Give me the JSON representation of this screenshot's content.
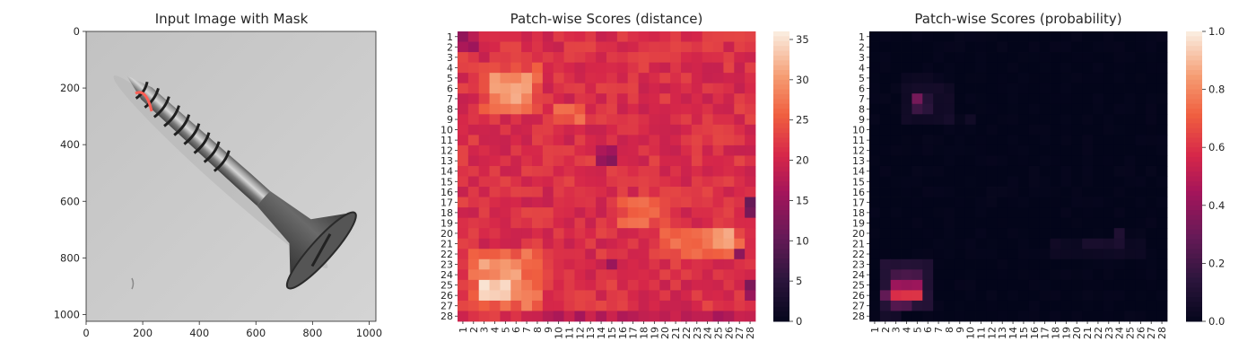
{
  "chart_data": [
    {
      "type": "image",
      "title": "Input Image with Mask",
      "xticks": [
        0,
        200,
        400,
        600,
        800,
        1000
      ],
      "yticks": [
        0,
        200,
        400,
        600,
        800,
        1000
      ],
      "xlim": [
        0,
        1024
      ],
      "ylim": [
        1024,
        0
      ],
      "content": "grayscale photo of a wood screw on a light gray background with a red mask arc near the screw tip",
      "background_gray": "#c9c9c9",
      "mask_color": "#ff5f55"
    },
    {
      "type": "heatmap",
      "title": "Patch-wise Scores (distance)",
      "rows": 28,
      "cols": 28,
      "row_labels": [
        "1",
        "2",
        "3",
        "4",
        "5",
        "6",
        "7",
        "8",
        "9",
        "10",
        "11",
        "12",
        "13",
        "14",
        "15",
        "16",
        "17",
        "18",
        "19",
        "20",
        "21",
        "22",
        "23",
        "24",
        "25",
        "26",
        "27",
        "28"
      ],
      "col_labels": [
        "1",
        "2",
        "3",
        "4",
        "5",
        "6",
        "7",
        "8",
        "9",
        "10",
        "11",
        "12",
        "13",
        "14",
        "15",
        "16",
        "17",
        "18",
        "19",
        "20",
        "21",
        "22",
        "23",
        "24",
        "25",
        "26",
        "27",
        "28"
      ],
      "colormap": "rocket",
      "vmin": 0,
      "vmax": 36,
      "colorbar_ticks": [
        "0",
        "5",
        "10",
        "15",
        "20",
        "25",
        "30",
        "35"
      ],
      "colorbar_tick_values": [
        0,
        5,
        10,
        15,
        20,
        25,
        30,
        35
      ],
      "base_value": 21.5,
      "regions": [
        {
          "r0": 0,
          "r1": 2,
          "c0": 0,
          "c1": 2,
          "value": 16
        },
        {
          "r0": 3,
          "r1": 8,
          "c0": 2,
          "c1": 8,
          "value": 25
        },
        {
          "r0": 4,
          "r1": 8,
          "c0": 3,
          "c1": 7,
          "value": 29
        },
        {
          "r0": 5,
          "r1": 7,
          "c0": 4,
          "c1": 6,
          "value": 31.5
        },
        {
          "r0": 7,
          "r1": 9,
          "c0": 9,
          "c1": 12,
          "value": 25.5
        },
        {
          "r0": 16,
          "r1": 19,
          "c0": 15,
          "c1": 20,
          "value": 25.5
        },
        {
          "r0": 19,
          "r1": 22,
          "c0": 19,
          "c1": 27,
          "value": 26
        },
        {
          "r0": 19,
          "r1": 21,
          "c0": 23,
          "c1": 26,
          "value": 29.5
        },
        {
          "r0": 21,
          "r1": 27,
          "c0": 1,
          "c1": 8,
          "value": 26.5
        },
        {
          "r0": 22,
          "r1": 26,
          "c0": 2,
          "c1": 6,
          "value": 30
        },
        {
          "r0": 24,
          "r1": 26,
          "c0": 2,
          "c1": 5,
          "value": 33.5
        },
        {
          "r0": 25,
          "r1": 26,
          "c0": 2,
          "c1": 4,
          "value": 35.5
        },
        {
          "r0": 27,
          "r1": 28,
          "c0": 8,
          "c1": 28,
          "value": 18.5
        },
        {
          "r0": 22,
          "r1": 23,
          "c0": 14,
          "c1": 15,
          "value": 15.5
        },
        {
          "r0": 11,
          "r1": 13,
          "c0": 13,
          "c1": 15,
          "value": 15.5
        },
        {
          "r0": 16,
          "r1": 18,
          "c0": 27,
          "c1": 28,
          "value": 12
        },
        {
          "r0": 21,
          "r1": 22,
          "c0": 26,
          "c1": 27,
          "value": 13
        },
        {
          "r0": 24,
          "r1": 26,
          "c0": 27,
          "c1": 28,
          "value": 14
        }
      ]
    },
    {
      "type": "heatmap",
      "title": "Patch-wise Scores (probability)",
      "rows": 28,
      "cols": 28,
      "row_labels": [
        "1",
        "2",
        "3",
        "4",
        "5",
        "6",
        "7",
        "8",
        "9",
        "10",
        "11",
        "12",
        "13",
        "14",
        "15",
        "16",
        "17",
        "18",
        "19",
        "20",
        "21",
        "22",
        "23",
        "24",
        "25",
        "26",
        "27",
        "28"
      ],
      "col_labels": [
        "1",
        "2",
        "3",
        "4",
        "5",
        "6",
        "7",
        "8",
        "9",
        "10",
        "11",
        "12",
        "13",
        "14",
        "15",
        "16",
        "17",
        "18",
        "19",
        "20",
        "21",
        "22",
        "23",
        "24",
        "25",
        "26",
        "27",
        "28"
      ],
      "colormap": "rocket",
      "vmin": 0,
      "vmax": 1,
      "colorbar_ticks": [
        "0.0",
        "0.2",
        "0.4",
        "0.6",
        "0.8",
        "1.0"
      ],
      "colorbar_tick_values": [
        0,
        0.2,
        0.4,
        0.6,
        0.8,
        1.0
      ],
      "base_value": 0.0,
      "regions": [
        {
          "r0": 4,
          "r1": 6,
          "c0": 3,
          "c1": 7,
          "value": 0.03
        },
        {
          "r0": 5,
          "r1": 9,
          "c0": 3,
          "c1": 8,
          "value": 0.06
        },
        {
          "r0": 6,
          "r1": 7,
          "c0": 4,
          "c1": 5,
          "value": 0.33
        },
        {
          "r0": 7,
          "r1": 8,
          "c0": 4,
          "c1": 5,
          "value": 0.18
        },
        {
          "r0": 6,
          "r1": 8,
          "c0": 5,
          "c1": 6,
          "value": 0.13
        },
        {
          "r0": 8,
          "r1": 9,
          "c0": 9,
          "c1": 10,
          "value": 0.05
        },
        {
          "r0": 20,
          "r1": 22,
          "c0": 17,
          "c1": 26,
          "value": 0.04
        },
        {
          "r0": 19,
          "r1": 21,
          "c0": 23,
          "c1": 24,
          "value": 0.11
        },
        {
          "r0": 20,
          "r1": 21,
          "c0": 20,
          "c1": 23,
          "value": 0.07
        },
        {
          "r0": 22,
          "r1": 27,
          "c0": 1,
          "c1": 6,
          "value": 0.12
        },
        {
          "r0": 23,
          "r1": 25,
          "c0": 2,
          "c1": 5,
          "value": 0.22
        },
        {
          "r0": 24,
          "r1": 25,
          "c0": 2,
          "c1": 5,
          "value": 0.42
        },
        {
          "r0": 25,
          "r1": 26,
          "c0": 2,
          "c1": 3,
          "value": 0.58
        },
        {
          "r0": 25,
          "r1": 26,
          "c0": 3,
          "c1": 5,
          "value": 0.6
        },
        {
          "r0": 25,
          "r1": 26,
          "c0": 1,
          "c1": 2,
          "value": 0.3
        },
        {
          "r0": 26,
          "r1": 27,
          "c0": 2,
          "c1": 4,
          "value": 0.25
        },
        {
          "r0": 27,
          "r1": 28,
          "c0": 1,
          "c1": 3,
          "value": 0.06
        }
      ]
    }
  ]
}
